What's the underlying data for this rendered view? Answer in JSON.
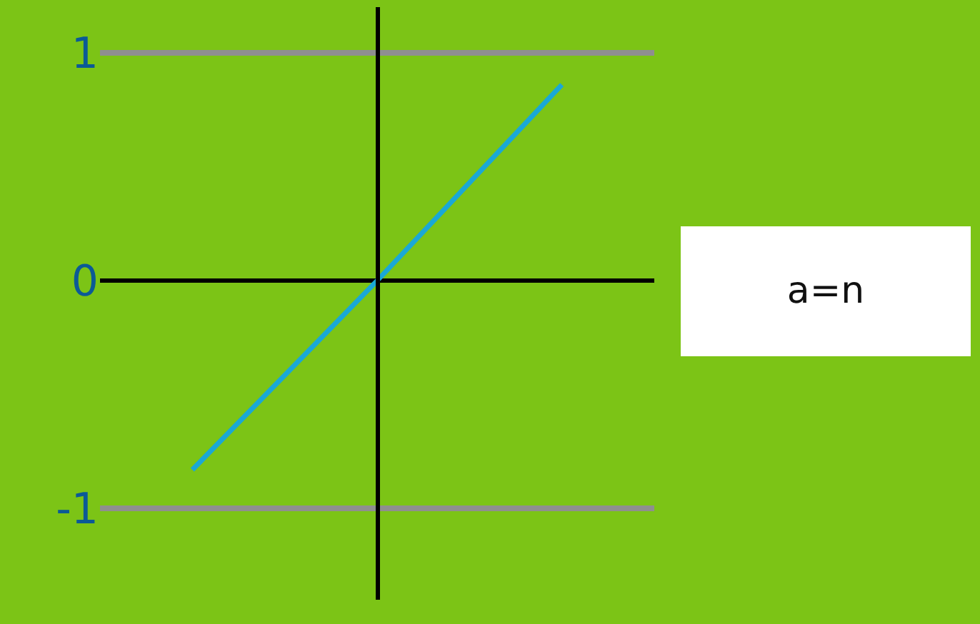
{
  "chart_data": {
    "type": "line",
    "categories": [
      null,
      null,
      null
    ],
    "series": [
      {
        "color": "#1aa8d6",
        "values": [
          -0.83,
          0,
          0.86
        ]
      }
    ],
    "ylim": [
      -1.4,
      1.2
    ],
    "yticks": [
      -1,
      0,
      1
    ],
    "grid": "y",
    "marker": "none",
    "line_style": "solid",
    "annotations": [
      "a=n"
    ]
  }
}
